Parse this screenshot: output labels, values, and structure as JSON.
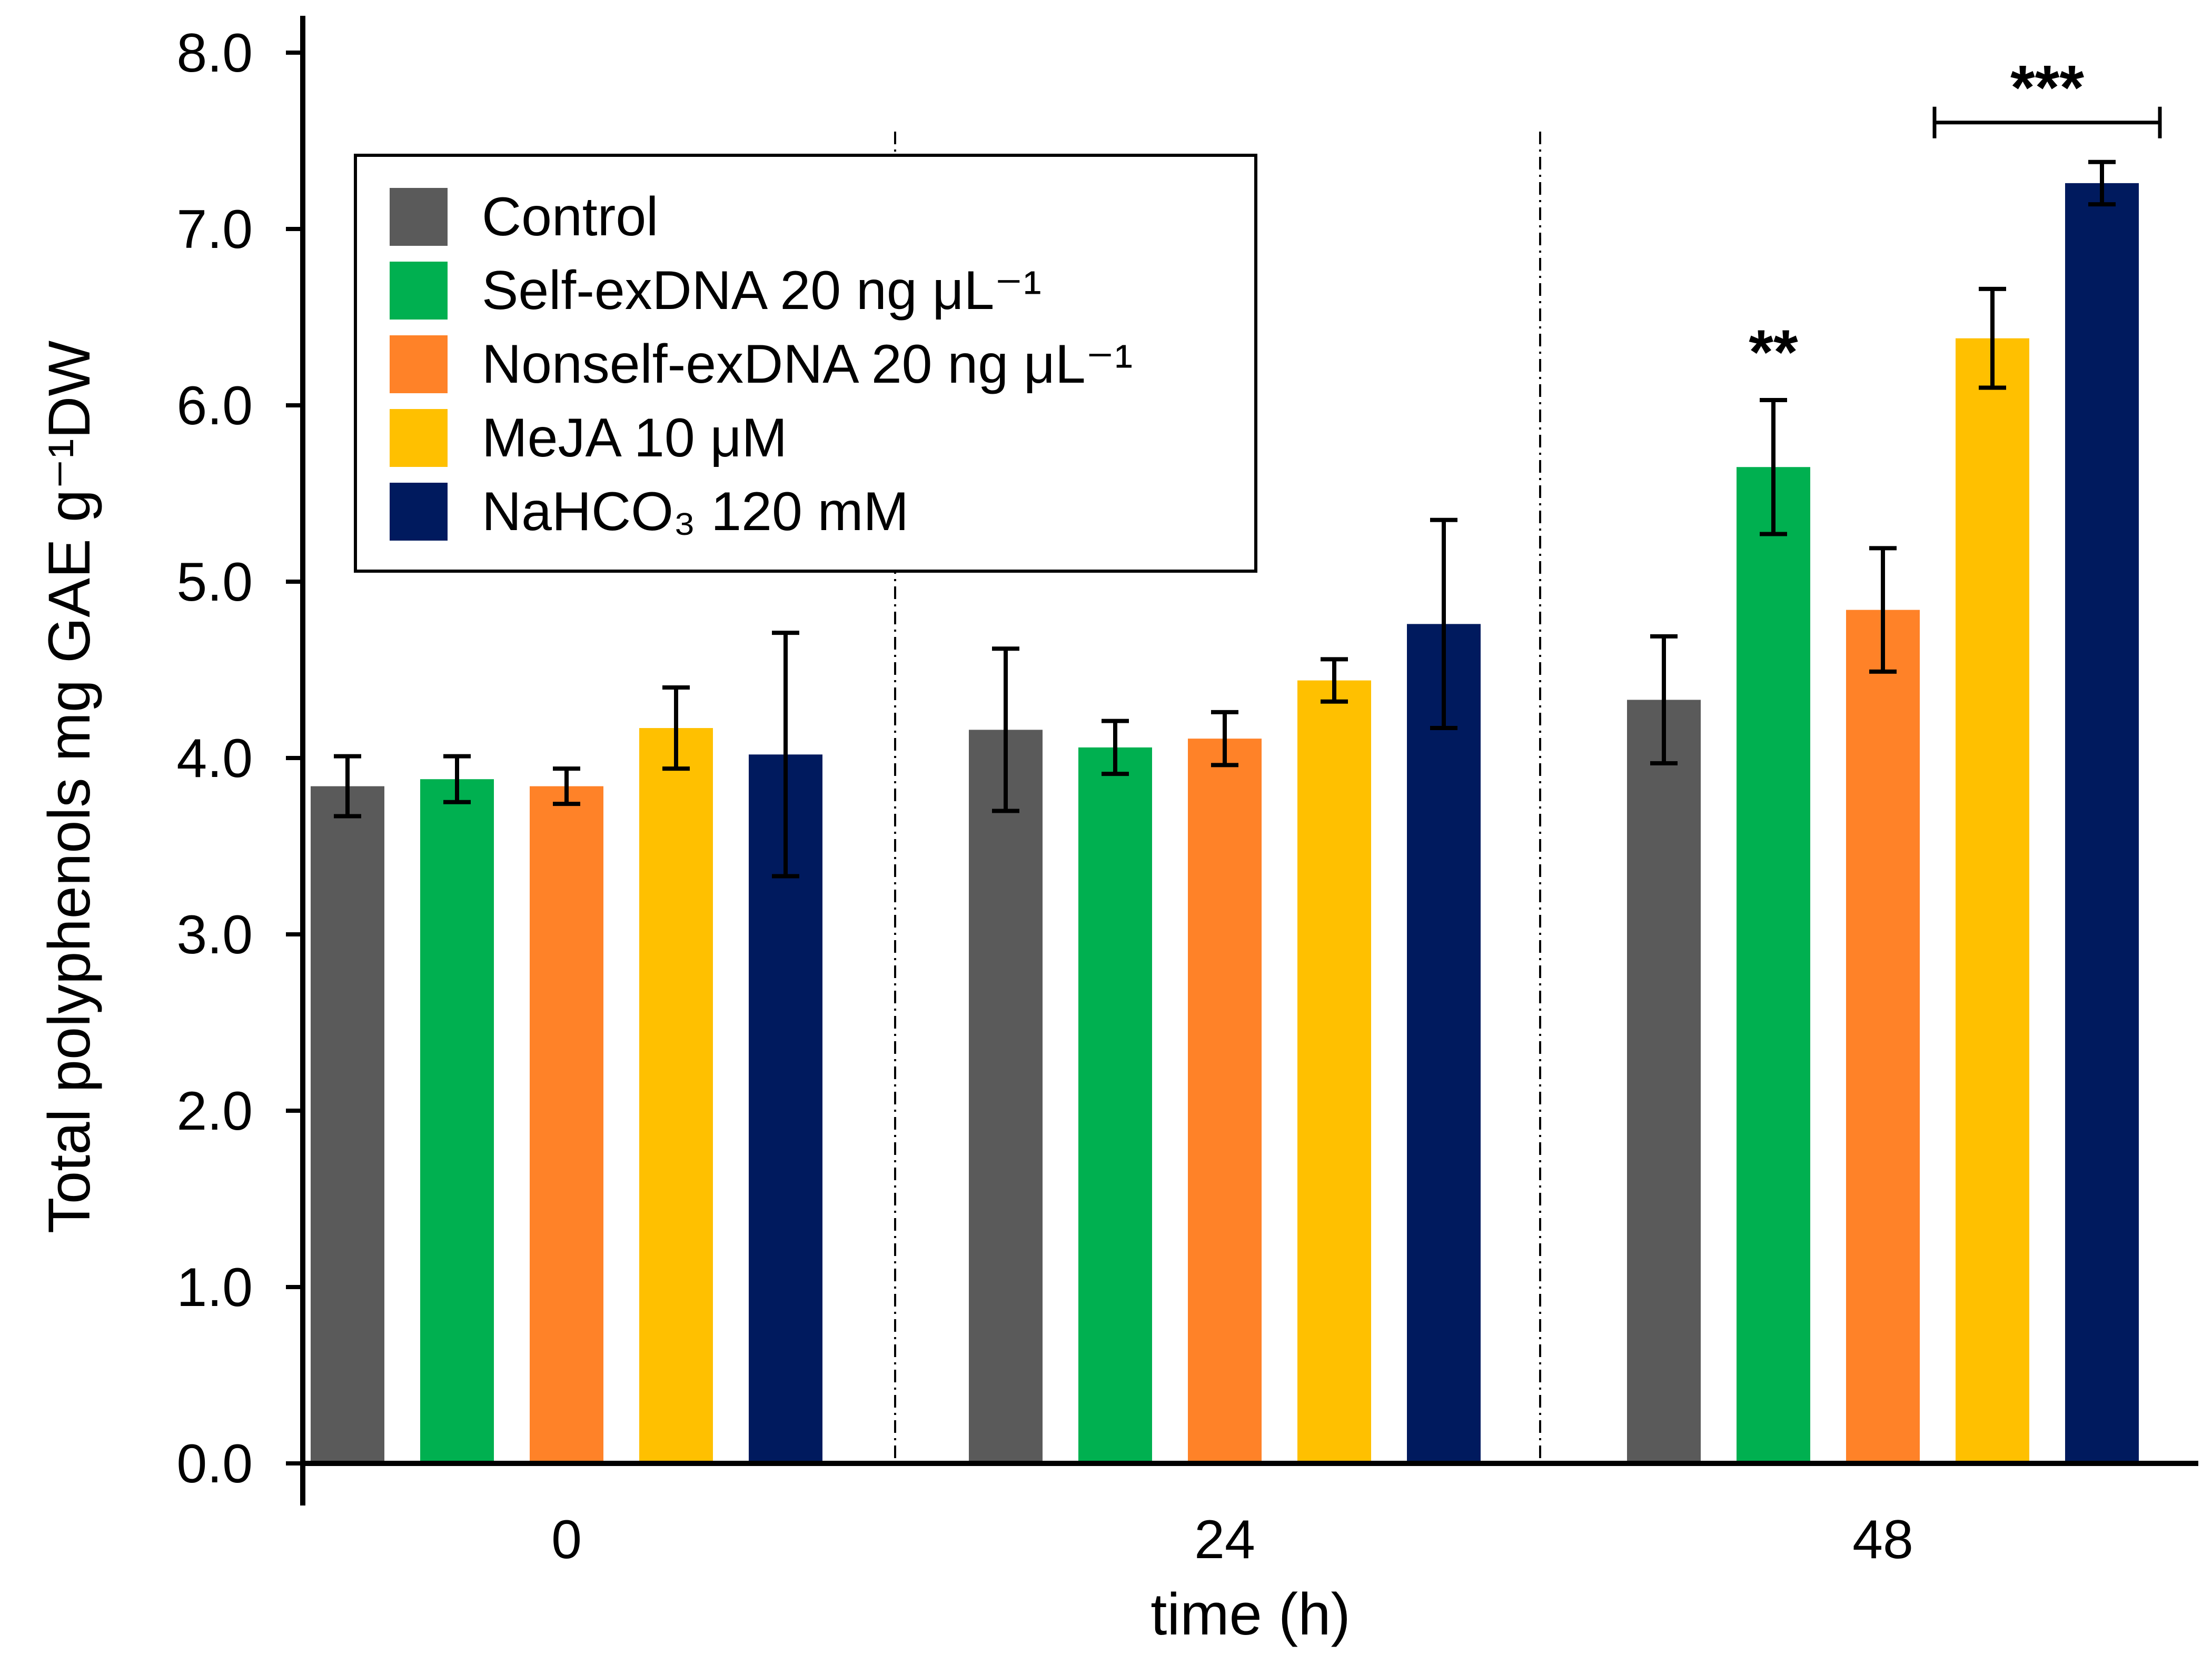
{
  "chart_data": {
    "type": "bar",
    "categories": [
      "0",
      "24",
      "48"
    ],
    "xlabel": "time (h)",
    "ylabel": "Total polyphenols  mg GAE g⁻¹DW",
    "ylim": [
      0,
      8
    ],
    "yticks": [
      "0.0",
      "1.0",
      "2.0",
      "3.0",
      "4.0",
      "5.0",
      "6.0",
      "7.0",
      "8.0"
    ],
    "grid": false,
    "legend_position": "top-left",
    "series": [
      {
        "name": "Control",
        "color": "#5a5a5a",
        "values": [
          3.84,
          4.16,
          4.33
        ],
        "errors": [
          0.17,
          0.46,
          0.36
        ]
      },
      {
        "name": "Self-exDNA 20 ng μL⁻¹",
        "color": "#00b050",
        "values": [
          3.88,
          4.06,
          5.65
        ],
        "errors": [
          0.13,
          0.15,
          0.38
        ]
      },
      {
        "name": "Nonself-exDNA 20 ng μL⁻¹",
        "color": "#ff8228",
        "values": [
          3.84,
          4.11,
          4.84
        ],
        "errors": [
          0.1,
          0.15,
          0.35
        ]
      },
      {
        "name": "MeJA 10 μM",
        "color": "#ffc000",
        "values": [
          4.17,
          4.44,
          6.38
        ],
        "errors": [
          0.23,
          0.12,
          0.28
        ]
      },
      {
        "name": "NaHCO₃ 120 mM",
        "color": "#001a5e",
        "values": [
          4.02,
          4.76,
          7.26
        ],
        "errors": [
          0.69,
          0.59,
          0.12
        ]
      }
    ],
    "annotations": [
      {
        "text": "**",
        "category": "48",
        "series": 1
      },
      {
        "text": "***",
        "category": "48",
        "series_range": [
          3,
          4
        ]
      }
    ]
  }
}
